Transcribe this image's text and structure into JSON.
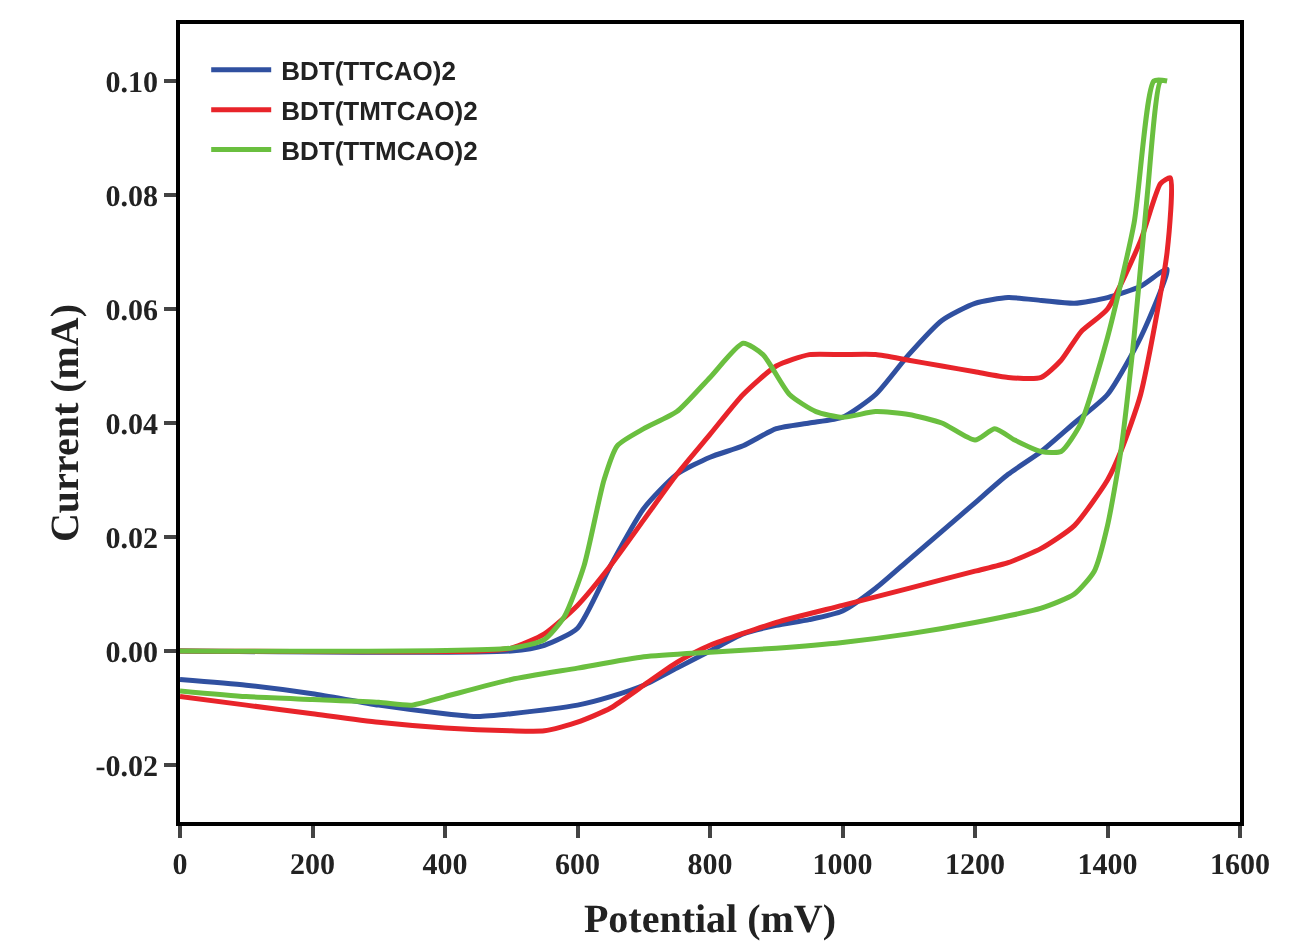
{
  "chart_data": {
    "type": "line",
    "xlabel": "Potential (mV)",
    "ylabel": "Current (mA)",
    "xlim": [
      0,
      1600
    ],
    "xticks": [
      0,
      200,
      400,
      600,
      800,
      1000,
      1200,
      1400,
      1600
    ],
    "ylim": [
      -0.03,
      0.11
    ],
    "yticks": [
      {
        "value": -0.02,
        "label": "-0.02"
      },
      {
        "value": 0,
        "label": "0.00"
      },
      {
        "value": 0.02,
        "label": "0.02"
      },
      {
        "value": 0.04,
        "label": "0.04"
      },
      {
        "value": 0.06,
        "label": "0.06"
      },
      {
        "value": 0.08,
        "label": "0.08"
      },
      {
        "value": 0.1,
        "label": "0.10"
      }
    ],
    "grid": false,
    "legend": "top left",
    "marker": "none",
    "line_style": "solid",
    "series": [
      {
        "name": "BDT(TTCAO)2",
        "color": "#3050a0",
        "x": [
          0,
          500,
          550,
          600,
          650,
          700,
          750,
          800,
          850,
          900,
          950,
          1000,
          1050,
          1100,
          1150,
          1200,
          1250,
          1300,
          1350,
          1400,
          1450,
          1490,
          1450,
          1400,
          1350,
          1300,
          1250,
          1200,
          1150,
          1100,
          1050,
          1000,
          950,
          900,
          850,
          800,
          750,
          700,
          650,
          600,
          500,
          450,
          400,
          300,
          200,
          100,
          0
        ],
        "values": [
          0,
          0,
          0.001,
          0.004,
          0.015,
          0.025,
          0.031,
          0.034,
          0.036,
          0.039,
          0.04,
          0.041,
          0.045,
          0.052,
          0.058,
          0.061,
          0.062,
          0.0615,
          0.061,
          0.062,
          0.064,
          0.067,
          0.055,
          0.045,
          0.04,
          0.035,
          0.031,
          0.026,
          0.021,
          0.016,
          0.011,
          0.007,
          0.0055,
          0.0045,
          0.003,
          0,
          -0.003,
          -0.006,
          -0.008,
          -0.0095,
          -0.011,
          -0.0115,
          -0.011,
          -0.0095,
          -0.0075,
          -0.006,
          -0.005
        ]
      },
      {
        "name": "BDT(TMTCAO)2",
        "color": "#e8242a",
        "x": [
          0,
          450,
          500,
          550,
          600,
          650,
          700,
          750,
          800,
          850,
          900,
          950,
          1000,
          1050,
          1100,
          1150,
          1200,
          1250,
          1300,
          1330,
          1360,
          1400,
          1450,
          1480,
          1495,
          1490,
          1450,
          1420,
          1400,
          1350,
          1300,
          1250,
          1200,
          1100,
          1000,
          900,
          800,
          750,
          700,
          650,
          600,
          550,
          500,
          400,
          300,
          200,
          100,
          0
        ],
        "values": [
          0,
          0,
          0.0005,
          0.003,
          0.008,
          0.015,
          0.023,
          0.031,
          0.038,
          0.045,
          0.05,
          0.052,
          0.052,
          0.052,
          0.051,
          0.05,
          0.049,
          0.048,
          0.048,
          0.051,
          0.056,
          0.06,
          0.072,
          0.082,
          0.083,
          0.07,
          0.045,
          0.035,
          0.03,
          0.022,
          0.018,
          0.0155,
          0.014,
          0.011,
          0.008,
          0.005,
          0.001,
          -0.002,
          -0.006,
          -0.01,
          -0.0125,
          -0.014,
          -0.014,
          -0.0135,
          -0.0125,
          -0.011,
          -0.0095,
          -0.008
        ]
      },
      {
        "name": "BDT(TTMCAO)2",
        "color": "#6abf3f",
        "x": [
          0,
          500,
          550,
          580,
          610,
          640,
          660,
          700,
          750,
          800,
          850,
          880,
          920,
          960,
          1000,
          1050,
          1100,
          1150,
          1200,
          1230,
          1260,
          1300,
          1330,
          1360,
          1400,
          1440,
          1470,
          1490,
          1480,
          1460,
          1440,
          1420,
          1400,
          1380,
          1350,
          1300,
          1200,
          1100,
          1000,
          900,
          800,
          700,
          600,
          500,
          400,
          350,
          300,
          200,
          100,
          0
        ],
        "values": [
          0,
          0.0005,
          0.002,
          0.006,
          0.015,
          0.03,
          0.036,
          0.039,
          0.042,
          0.048,
          0.054,
          0.052,
          0.045,
          0.042,
          0.041,
          0.042,
          0.0415,
          0.04,
          0.037,
          0.039,
          0.037,
          0.035,
          0.035,
          0.04,
          0.055,
          0.075,
          0.1,
          0.1,
          0.1,
          0.08,
          0.055,
          0.035,
          0.022,
          0.014,
          0.01,
          0.0075,
          0.005,
          0.003,
          0.0015,
          0.0005,
          -0.0002,
          -0.001,
          -0.003,
          -0.005,
          -0.008,
          -0.0095,
          -0.009,
          -0.0085,
          -0.008,
          -0.007
        ]
      }
    ]
  }
}
